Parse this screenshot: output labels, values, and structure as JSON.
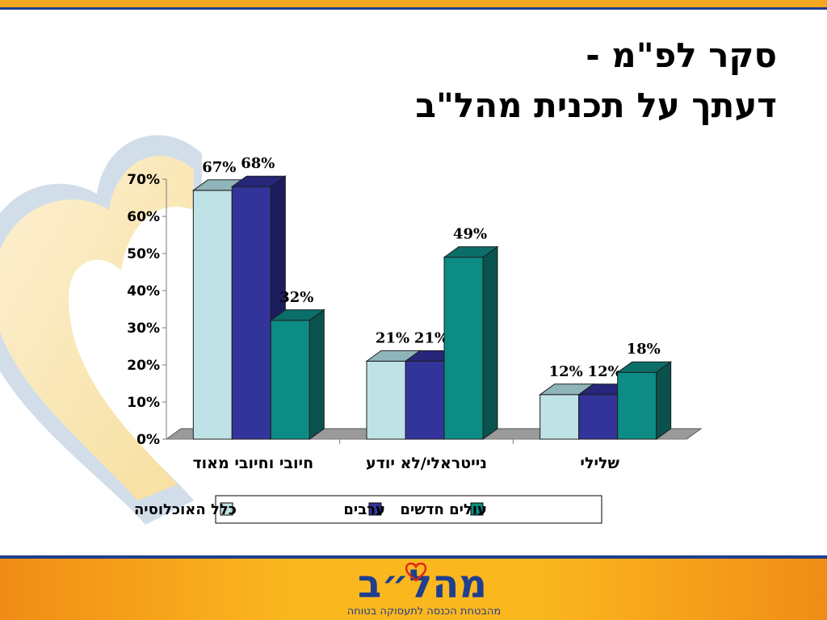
{
  "slide": {
    "title_line1": "סקר לפ\"מ -",
    "title_line2": "דעתך על תכנית מהל\"ב"
  },
  "logo": {
    "name": "מהל״ב",
    "tagline": "מהבטחת הכנסה לתעסוקה בטוחה"
  },
  "colors": {
    "series": [
      "#bfe2e6",
      "#33349a",
      "#0c8c84"
    ],
    "series_side": [
      "#7fa6ab",
      "#1c1d5e",
      "#0a524e"
    ],
    "series_top": [
      "#8fb5ba",
      "#26277a",
      "#0b6e68"
    ]
  },
  "chart_data": {
    "type": "bar",
    "categories": [
      "חיובי וחיובי מאוד",
      "נייטראלי/לא יודע",
      "שלילי"
    ],
    "series": [
      {
        "name": "כלל האוכלוסיה",
        "values": [
          67,
          21,
          12
        ]
      },
      {
        "name": "ערבים",
        "values": [
          68,
          21,
          12
        ]
      },
      {
        "name": "עולים חדשים",
        "values": [
          32,
          49,
          18
        ]
      }
    ],
    "data_labels": [
      [
        "67%",
        "21%",
        "12%"
      ],
      [
        "68%",
        "21%",
        "12%"
      ],
      [
        "32%",
        "49%",
        "18%"
      ]
    ],
    "y_ticks": [
      "0%",
      "10%",
      "20%",
      "30%",
      "40%",
      "50%",
      "60%",
      "70%"
    ],
    "ylim": [
      0,
      70
    ],
    "unit": "%",
    "grid": false,
    "legend_position": "bottom",
    "style": "3d-clustered-column"
  }
}
